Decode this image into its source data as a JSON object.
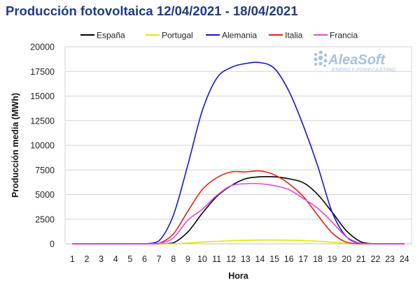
{
  "title": "Producción fotovoltaica 12/04/2021 - 18/04/2021",
  "logo": {
    "name": "AleaSoft",
    "tagline": "ENERGY FORECASTING"
  },
  "chart_data": {
    "type": "line",
    "title": "Producción fotovoltaica 12/04/2021 - 18/04/2021",
    "xlabel": "Hora",
    "ylabel": "Producción media (MWh)",
    "x": [
      1,
      2,
      3,
      4,
      5,
      6,
      7,
      8,
      9,
      10,
      11,
      12,
      13,
      14,
      15,
      16,
      17,
      18,
      19,
      20,
      21,
      22,
      23,
      24
    ],
    "ylim": [
      0,
      20000
    ],
    "yticks": [
      0,
      2500,
      5000,
      7500,
      10000,
      12500,
      15000,
      17500,
      20000
    ],
    "grid": "horizontal",
    "legend_position": "top",
    "series": [
      {
        "name": "España",
        "color": "#000000",
        "values": [
          0,
          0,
          0,
          0,
          0,
          0,
          0,
          100,
          1200,
          3100,
          4800,
          5900,
          6600,
          6800,
          6800,
          6600,
          6200,
          5000,
          3200,
          1300,
          200,
          0,
          0,
          0
        ]
      },
      {
        "name": "Portugal",
        "color": "#e6e600",
        "values": [
          0,
          0,
          0,
          0,
          0,
          0,
          0,
          0,
          80,
          180,
          250,
          310,
          350,
          380,
          380,
          370,
          330,
          260,
          160,
          50,
          0,
          0,
          0,
          0
        ]
      },
      {
        "name": "Alemania",
        "color": "#1515d8",
        "values": [
          0,
          0,
          0,
          0,
          0,
          0,
          300,
          2900,
          8000,
          13500,
          16800,
          17900,
          18300,
          18400,
          17800,
          15500,
          12000,
          7900,
          3200,
          700,
          50,
          0,
          0,
          0
        ]
      },
      {
        "name": "Italia",
        "color": "#e8201a",
        "values": [
          0,
          0,
          0,
          0,
          0,
          0,
          50,
          1000,
          3300,
          5500,
          6700,
          7300,
          7300,
          7400,
          7000,
          6100,
          4800,
          2900,
          1100,
          150,
          0,
          0,
          0,
          0
        ]
      },
      {
        "name": "Francia",
        "color": "#e844e8",
        "values": [
          0,
          0,
          0,
          0,
          0,
          0,
          50,
          600,
          2400,
          3500,
          4900,
          5900,
          6100,
          6100,
          5900,
          5500,
          4600,
          3600,
          2200,
          700,
          50,
          0,
          0,
          0
        ]
      }
    ]
  }
}
